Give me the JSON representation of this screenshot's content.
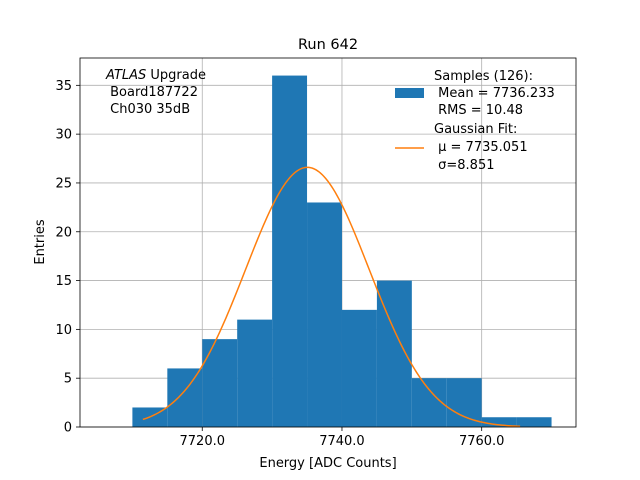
{
  "chart_data": {
    "type": "histogram",
    "title": "Run 642",
    "xlabel": "Energy [ADC Counts]",
    "ylabel": "Entries",
    "xlim": [
      7702.5,
      7773.5
    ],
    "ylim": [
      0,
      37.8
    ],
    "xticks": [
      7720,
      7740,
      7760
    ],
    "xtick_labels": [
      "7720.0",
      "7740.0",
      "7760.0"
    ],
    "yticks": [
      0,
      5,
      10,
      15,
      20,
      25,
      30,
      35
    ],
    "ytick_labels": [
      "0",
      "5",
      "10",
      "15",
      "20",
      "25",
      "30",
      "35"
    ],
    "grid": true,
    "bins": [
      {
        "x0": 7710,
        "x1": 7715,
        "count": 2
      },
      {
        "x0": 7715,
        "x1": 7720,
        "count": 6
      },
      {
        "x0": 7720,
        "x1": 7725,
        "count": 9
      },
      {
        "x0": 7725,
        "x1": 7730,
        "count": 11
      },
      {
        "x0": 7730,
        "x1": 7735,
        "count": 36
      },
      {
        "x0": 7735,
        "x1": 7740,
        "count": 23
      },
      {
        "x0": 7740,
        "x1": 7745,
        "count": 12
      },
      {
        "x0": 7745,
        "x1": 7750,
        "count": 15
      },
      {
        "x0": 7750,
        "x1": 7755,
        "count": 5
      },
      {
        "x0": 7755,
        "x1": 7760,
        "count": 5
      },
      {
        "x0": 7760,
        "x1": 7765,
        "count": 1
      },
      {
        "x0": 7765,
        "x1": 7770,
        "count": 1
      }
    ],
    "fit": {
      "type": "gaussian",
      "amplitude": 26.6,
      "mu": 7735.051,
      "sigma": 8.851,
      "x_range": [
        7711.5,
        7765.5
      ]
    },
    "colors": {
      "histogram": "#1f77b4",
      "fit": "#ff7f0e",
      "grid": "#b0b0b0"
    },
    "annotation": {
      "atlas_italic": "ATLAS",
      "line1_rest": " Upgrade",
      "line2": " Board187722",
      "line3": " Ch030 35dB"
    },
    "legend": {
      "position": "top-right",
      "samples_line1": "Samples (126):",
      "samples_line2": " Mean = 7736.233",
      "samples_line3": " RMS = 10.48",
      "fit_line1": "Gaussian Fit:",
      "fit_line2": " μ = 7735.051",
      "fit_line3": " σ=8.851"
    }
  }
}
